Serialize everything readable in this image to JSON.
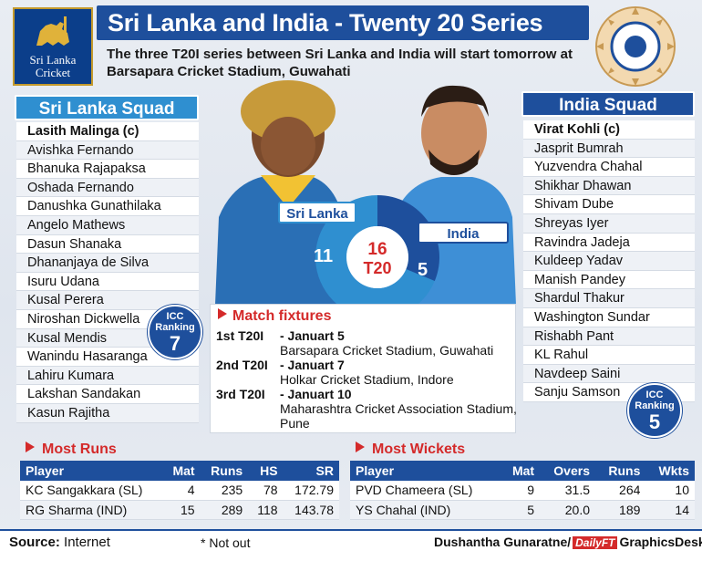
{
  "header": {
    "title": "Sri Lanka and India - Twenty 20 Series",
    "subtitle": "The three T20I series between Sri Lanka and India will start tomorrow at Barsapara Cricket Stadium, Guwahati",
    "sl_logo_text_1": "Sri Lanka",
    "sl_logo_text_2": "Cricket"
  },
  "colors": {
    "primary_blue": "#1e4f9c",
    "light_blue": "#2f8fd0",
    "accent_red": "#d42a2a"
  },
  "sri_lanka": {
    "heading": "Sri Lanka Squad",
    "captain": "Lasith Malinga (c)",
    "players": [
      "Avishka Fernando",
      "Bhanuka Rajapaksa",
      "Oshada Fernando",
      "Danushka Gunathilaka",
      "Angelo Mathews",
      "Dasun Shanaka",
      "Dhananjaya de Silva",
      "Isuru Udana",
      "Kusal Perera",
      "Niroshan Dickwella",
      "Kusal Mendis",
      "Wanindu Hasaranga",
      "Lahiru Kumara",
      "Lakshan Sandakan",
      "Kasun Rajitha"
    ],
    "ranking": {
      "label1": "ICC",
      "label2": "Ranking",
      "value": "7"
    }
  },
  "india": {
    "heading": "India Squad",
    "captain": "Virat Kohli (c)",
    "players": [
      "Jasprit Bumrah",
      "Yuzvendra Chahal",
      "Shikhar Dhawan",
      "Shivam Dube",
      "Shreyas Iyer",
      "Ravindra Jadeja",
      "Kuldeep Yadav",
      "Manish Pandey",
      "Shardul Thakur",
      "Washington Sundar",
      "Rishabh Pant",
      "KL Rahul",
      "Navdeep Saini",
      "Sanju Samson"
    ],
    "ranking": {
      "label1": "ICC",
      "label2": "Ranking",
      "value": "5"
    }
  },
  "head_to_head": {
    "sl_label": "Sri Lanka",
    "in_label": "India",
    "sl_wins": "11",
    "in_wins": "5",
    "total_matches": "16",
    "total_label": "T20",
    "sl_fraction": 0.6875,
    "in_fraction": 0.3125
  },
  "fixtures": {
    "title": "Match fixtures",
    "items": [
      {
        "name": "1st T20I",
        "date": "- Januart 5",
        "venue": "Barsapara Cricket Stadium, Guwahati"
      },
      {
        "name": "2nd T20I",
        "date": "- Januart 7",
        "venue": "Holkar Cricket Stadium, Indore"
      },
      {
        "name": "3rd T20I",
        "date": "- Januart 10",
        "venue": "Maharashtra Cricket Association Stadium, Pune"
      }
    ]
  },
  "most_runs": {
    "title": "Most Runs",
    "columns": [
      "Player",
      "Mat",
      "Runs",
      "HS",
      "SR"
    ],
    "rows": [
      [
        "KC Sangakkara (SL)",
        "4",
        "235",
        "78",
        "172.79"
      ],
      [
        "RG Sharma (IND)",
        "15",
        "289",
        "118",
        "143.78"
      ]
    ]
  },
  "most_wickets": {
    "title": "Most Wickets",
    "columns": [
      "Player",
      "Mat",
      "Overs",
      "Runs",
      "Wkts"
    ],
    "rows": [
      [
        "PVD Chameera (SL)",
        "9",
        "31.5",
        "264",
        "10"
      ],
      [
        "YS Chahal (IND)",
        "5",
        "20.0",
        "189",
        "14"
      ]
    ]
  },
  "footer": {
    "source_label": "Source:",
    "source_value": " Internet",
    "note": "* Not out",
    "credit_pre": "Dushantha Gunaratne/",
    "credit_brand": "DailyFT",
    "credit_post": "GraphicsDesk"
  }
}
